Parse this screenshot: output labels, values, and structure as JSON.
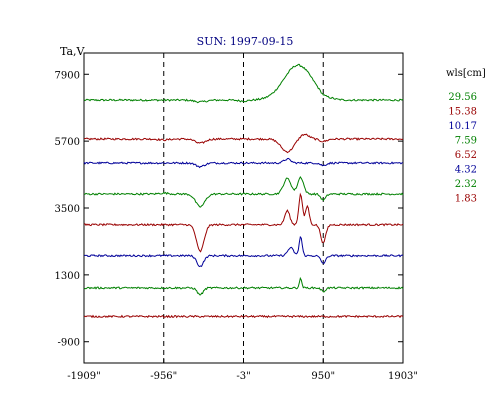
{
  "chart_data": {
    "type": "line",
    "title": "SUN: 1997-09-15",
    "ylabel": "Ta,V",
    "xlabel": "",
    "x_ticks": [
      "-1909\"",
      "-956\"",
      "-3\"",
      "950\"",
      "1903\""
    ],
    "x_tick_values": [
      -1909,
      -956,
      -3,
      950,
      1903
    ],
    "y_ticks": [
      "7900",
      "5700",
      "3500",
      "1300",
      "-900"
    ],
    "y_tick_values": [
      7900,
      5700,
      3500,
      1300,
      -900
    ],
    "xlim": [
      -1909,
      1903
    ],
    "ylim": [
      -1600,
      8600
    ],
    "vertical_dashed_lines_at_x": [
      -956,
      -3,
      950
    ],
    "legend": {
      "placement": "right",
      "title": "wls[cm]",
      "entries": [
        "29.56",
        "15.38",
        "10.17",
        "7.59",
        "6.52",
        "4.32",
        "2.32",
        "1.83"
      ]
    },
    "series": [
      {
        "name": "29.56",
        "color": "#008000",
        "baseline": 7050,
        "features": [
          [
            -520,
            -60,
            70
          ],
          [
            -3,
            -30,
            60
          ],
          [
            650,
            1150,
            170
          ],
          [
            950,
            -60,
            40
          ]
        ]
      },
      {
        "name": "15.38",
        "color": "#990000",
        "baseline": 5770,
        "features": [
          [
            -956,
            -30,
            60
          ],
          [
            -520,
            -140,
            60
          ],
          [
            520,
            -420,
            75
          ],
          [
            720,
            160,
            55
          ],
          [
            950,
            -80,
            45
          ]
        ]
      },
      {
        "name": "10.17",
        "color": "#000099",
        "baseline": 4980,
        "features": [
          [
            -520,
            -120,
            50
          ],
          [
            520,
            130,
            40
          ],
          [
            950,
            -80,
            35
          ]
        ]
      },
      {
        "name": "7.59",
        "color": "#008000",
        "baseline": 3960,
        "features": [
          [
            -956,
            30,
            55
          ],
          [
            -520,
            -420,
            55
          ],
          [
            520,
            510,
            45
          ],
          [
            680,
            550,
            35
          ],
          [
            950,
            -200,
            30
          ]
        ]
      },
      {
        "name": "6.52",
        "color": "#990000",
        "baseline": 2950,
        "features": [
          [
            -520,
            -880,
            45
          ],
          [
            520,
            460,
            30
          ],
          [
            680,
            1000,
            22
          ],
          [
            760,
            620,
            22
          ],
          [
            950,
            -600,
            30
          ]
        ]
      },
      {
        "name": "4.32",
        "color": "#000099",
        "baseline": 1930,
        "features": [
          [
            -520,
            -350,
            40
          ],
          [
            560,
            260,
            35
          ],
          [
            680,
            630,
            18
          ],
          [
            950,
            -250,
            30
          ]
        ]
      },
      {
        "name": "2.32",
        "color": "#008000",
        "baseline": 870,
        "features": [
          [
            -520,
            -220,
            35
          ],
          [
            680,
            300,
            15
          ],
          [
            950,
            -120,
            25
          ]
        ]
      },
      {
        "name": "1.83",
        "color": "#990000",
        "baseline": -70,
        "features": []
      }
    ]
  }
}
